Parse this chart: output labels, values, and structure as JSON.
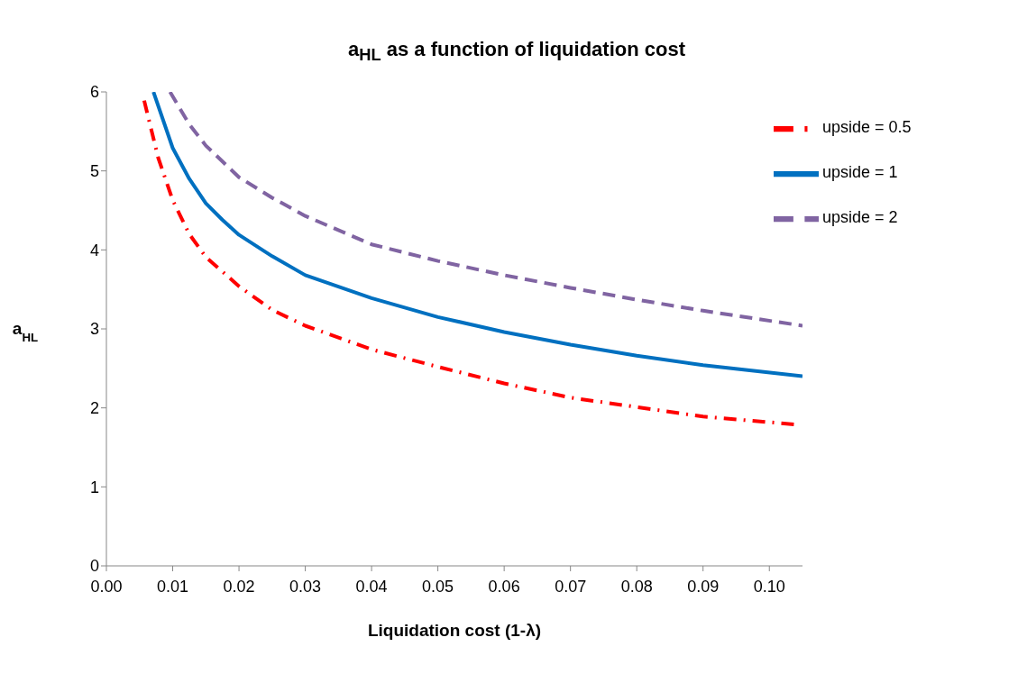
{
  "chart_data": {
    "type": "line",
    "title": "a$_{HL}$ as a function of liquidation cost",
    "xlabel": "Liquidation cost (1-λ)",
    "ylabel": "a$_{HL}$",
    "xlim": [
      0,
      0.105
    ],
    "xticks": [
      {
        "value": 0,
        "label": "0.00"
      },
      {
        "value": 0.01,
        "label": "0.01"
      },
      {
        "value": 0.02,
        "label": "0.02"
      },
      {
        "value": 0.03,
        "label": "0.03"
      },
      {
        "value": 0.04,
        "label": "0.04"
      },
      {
        "value": 0.05,
        "label": "0.05"
      },
      {
        "value": 0.06,
        "label": "0.06"
      },
      {
        "value": 0.07,
        "label": "0.07"
      },
      {
        "value": 0.08,
        "label": "0.08"
      },
      {
        "value": 0.09,
        "label": "0.09"
      },
      {
        "value": 0.1,
        "label": "0.10"
      }
    ],
    "ylim": [
      0,
      6
    ],
    "yticks": [
      0,
      1,
      2,
      3,
      4,
      5,
      6
    ],
    "grid": false,
    "legend": "top right",
    "marker": "none",
    "series": [
      {
        "name": "upside = 0.5",
        "color": "#ff0000",
        "line_style": "dashdot",
        "x": [
          0.0057,
          0.0078,
          0.01,
          0.0125,
          0.015,
          0.02,
          0.025,
          0.03,
          0.04,
          0.05,
          0.06,
          0.07,
          0.08,
          0.09,
          0.104
        ],
        "values": [
          5.89,
          5.17,
          4.63,
          4.2,
          3.91,
          3.54,
          3.24,
          3.04,
          2.74,
          2.52,
          2.31,
          2.13,
          2.01,
          1.89,
          1.79
        ]
      },
      {
        "name": "upside = 1",
        "color": "#0070c0",
        "line_style": "solid",
        "x": [
          0.0071,
          0.01,
          0.0125,
          0.015,
          0.0175,
          0.02,
          0.025,
          0.03,
          0.04,
          0.05,
          0.06,
          0.07,
          0.08,
          0.09,
          0.105
        ],
        "values": [
          6,
          5.29,
          4.9,
          4.59,
          4.38,
          4.19,
          3.92,
          3.68,
          3.39,
          3.15,
          2.96,
          2.8,
          2.66,
          2.54,
          2.4
        ]
      },
      {
        "name": "upside = 2",
        "color": "#8064a2",
        "line_style": "dashed",
        "x": [
          0.0096,
          0.0125,
          0.015,
          0.02,
          0.025,
          0.03,
          0.04,
          0.05,
          0.06,
          0.07,
          0.08,
          0.09,
          0.105
        ],
        "values": [
          6,
          5.59,
          5.32,
          4.92,
          4.66,
          4.43,
          4.07,
          3.86,
          3.68,
          3.52,
          3.37,
          3.23,
          3.04
        ]
      }
    ]
  }
}
